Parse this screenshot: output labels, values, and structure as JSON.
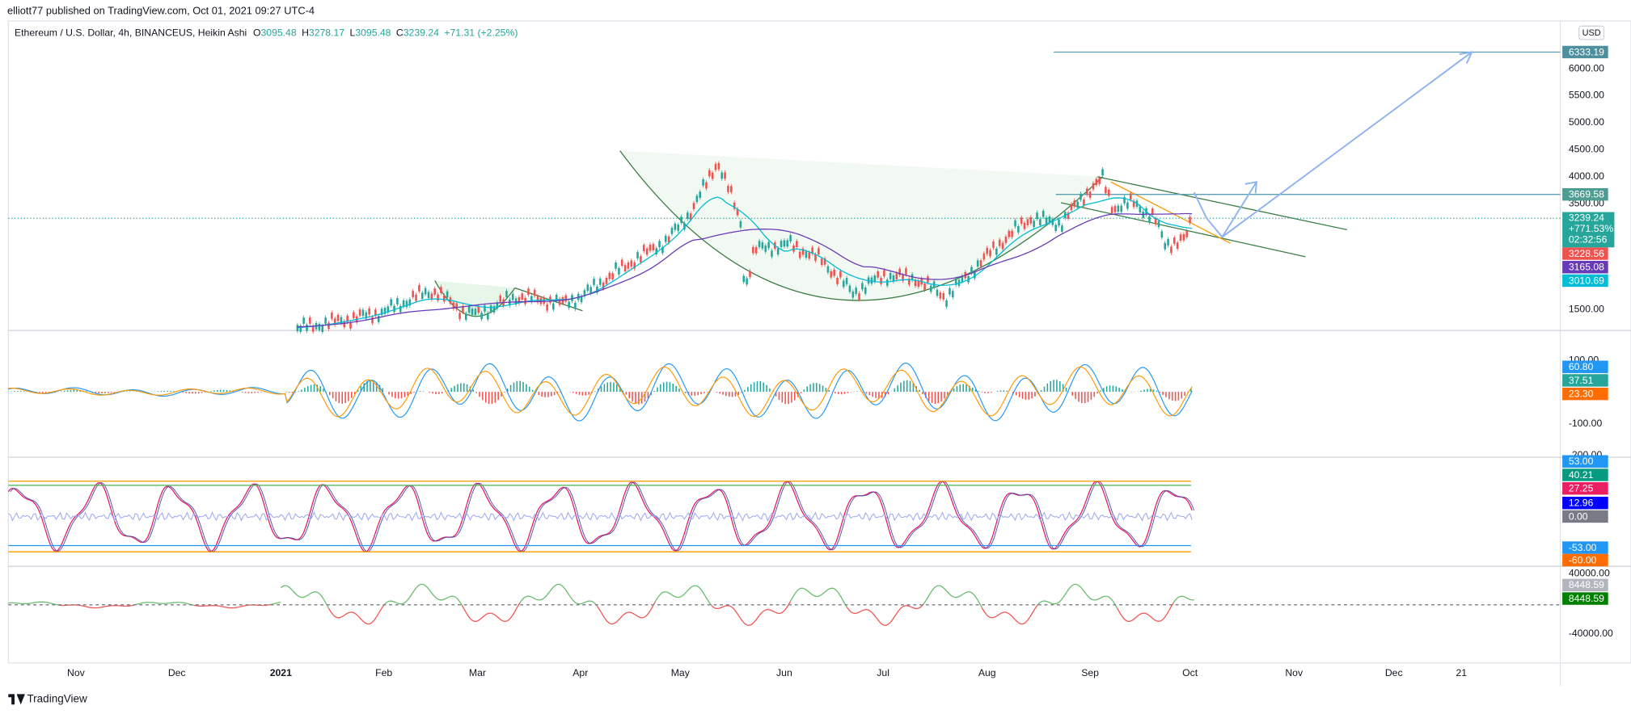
{
  "header": {
    "publisher": "elliott77 published on TradingView.com, Oct 01, 2021 09:27 UTC-4"
  },
  "legend": {
    "symbol": "Ethereum / U.S. Dollar, 4h, BINANCEUS, Heikin Ashi",
    "items": [
      {
        "key": "O",
        "value": "3095.48"
      },
      {
        "key": "H",
        "value": "3278.17"
      },
      {
        "key": "L",
        "value": "3095.48"
      },
      {
        "key": "C",
        "value": "3239.24"
      }
    ],
    "change": "+71.31 (+2.25%)"
  },
  "price_axis": {
    "currency": "USD",
    "ticks": [
      "6000.00",
      "5500.00",
      "5000.00",
      "4500.00",
      "4000.00",
      "3500.00",
      "1500.00"
    ],
    "badges": [
      {
        "label": "6333.19",
        "color": "#4e8f9e"
      },
      {
        "label": "3669.58",
        "color": "#4f9c93"
      },
      {
        "label": "3228.56",
        "color": "#ef5350"
      },
      {
        "label": "3165.08",
        "color": "#673ab7"
      },
      {
        "label": "3010.69",
        "color": "#00bcd4"
      }
    ],
    "last": {
      "price": "3239.24",
      "change": "+771.53%",
      "countdown": "02:32:56",
      "color": "#26a69a"
    }
  },
  "panes": [
    {
      "ticks": [
        "100.00",
        "-100.00",
        "-200.00"
      ],
      "badges": [
        {
          "label": "60.80",
          "color": "#2196f3"
        },
        {
          "label": "37.51",
          "color": "#26a69a"
        },
        {
          "label": "23.30",
          "color": "#ff6d00"
        }
      ]
    },
    {
      "ticks": [],
      "badges": [
        {
          "label": "53.00",
          "color": "#2196f3"
        },
        {
          "label": "40.21",
          "color": "#089981"
        },
        {
          "label": "27.25",
          "color": "#e91e63"
        },
        {
          "label": "12.96",
          "color": "#0000ff"
        },
        {
          "label": "0.00",
          "color": "#787b86"
        },
        {
          "label": "-53.00",
          "color": "#2196f3"
        },
        {
          "label": "-60.00",
          "color": "#ff6d00"
        }
      ]
    },
    {
      "ticks": [
        "40000.00",
        "-40000.00"
      ],
      "badges": [
        {
          "label": "8448.59",
          "color": "#b2b5be"
        },
        {
          "label": "8448.59",
          "color": "#008000"
        }
      ]
    }
  ],
  "time_axis": [
    "Nov",
    "Dec",
    "2021",
    "Feb",
    "Mar",
    "Apr",
    "May",
    "Jun",
    "Jul",
    "Aug",
    "Sep",
    "Oct",
    "Nov",
    "Dec",
    "21"
  ],
  "footer": {
    "brand": "TradingView"
  }
}
